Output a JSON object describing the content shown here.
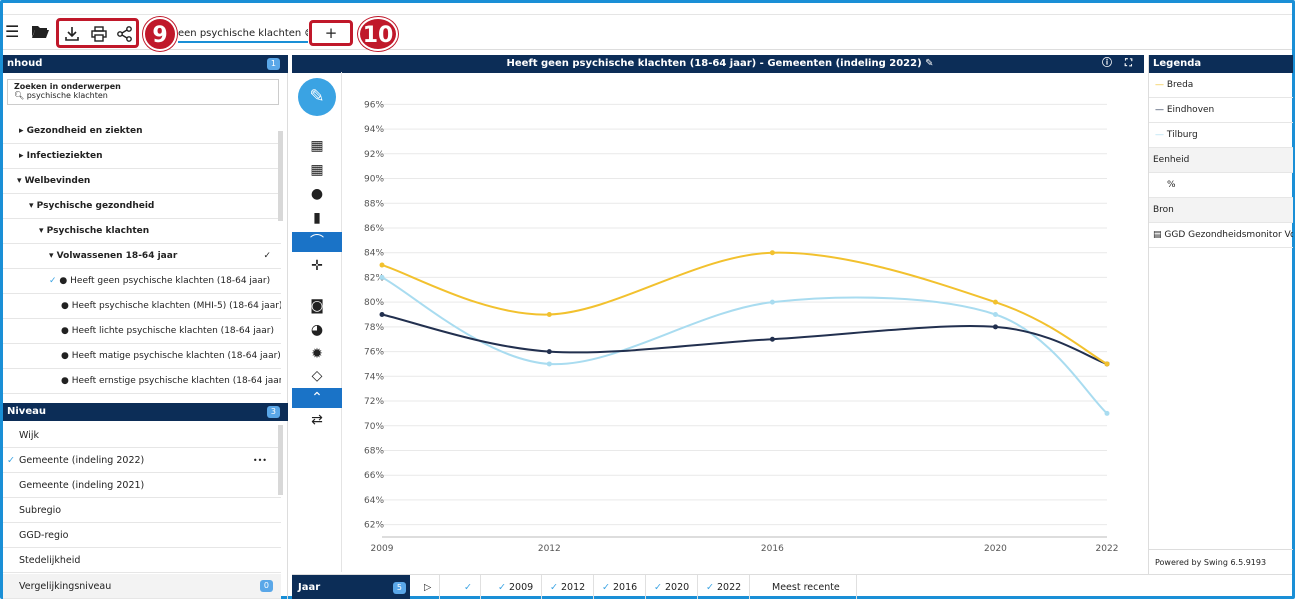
{
  "toolbar": {
    "menu_icon": "hamburger-icon",
    "folder_icon": "folder-open-icon",
    "download_icon": "download-icon",
    "print_icon": "print-icon",
    "share_icon": "share-icon",
    "badge_9": "9",
    "badge_10": "10",
    "add_tab_label": "+",
    "search_tab_text": "een psychische klachten",
    "close_tab_icon": "close-circle-icon"
  },
  "inhoud": {
    "title": "nhoud",
    "count": "1",
    "search_label": "Zoeken in onderwerpen",
    "search_value": "psychische klachten",
    "items": [
      {
        "label": "Gezondheid en ziekten",
        "prefix": "▸"
      },
      {
        "label": "Infectieziekten",
        "prefix": "▸"
      },
      {
        "label": "Welbevinden",
        "prefix": "▾"
      },
      {
        "label": "Psychische gezondheid",
        "prefix": "▾"
      },
      {
        "label": "Psychische klachten",
        "prefix": "▾"
      },
      {
        "label": "Volwassenen 18-64 jaar",
        "prefix": "▾"
      },
      {
        "label": "Heeft geen psychische klachten (18-64 jaar)",
        "prefix": "✓"
      },
      {
        "label": "Heeft psychische klachten (MHI-5) (18-64 jaar)",
        "prefix": ""
      },
      {
        "label": "Heeft lichte psychische klachten (18-64 jaar)",
        "prefix": ""
      },
      {
        "label": "Heeft matige psychische klachten (18-64 jaar)",
        "prefix": ""
      },
      {
        "label": "Heeft ernstige psychische klachten (18-64 jaar)",
        "prefix": ""
      }
    ]
  },
  "niveau": {
    "title": "Niveau",
    "count": "3",
    "items": [
      "Wijk",
      "Gemeente (indeling 2022)",
      "Gemeente (indeling 2021)",
      "Subregio",
      "GGD-regio",
      "Stedelijkheid"
    ],
    "more": "•••",
    "vergelijking_label": "Vergelijkingsniveau",
    "vergelijking_count": "0"
  },
  "chart_header": {
    "title": "Heeft geen psychische klachten (18-64 jaar) - Gemeenten (indeling 2022)",
    "edit_icon": "pencil-icon",
    "info_icon": "info-icon",
    "fullscreen_icon": "fullscreen-icon"
  },
  "chart_data": {
    "type": "line",
    "x": [
      2009,
      2012,
      2016,
      2020,
      2022
    ],
    "ylim": [
      61,
      97
    ],
    "yticks": [
      "96%",
      "94%",
      "92%",
      "90%",
      "88%",
      "86%",
      "84%",
      "82%",
      "80%",
      "78%",
      "76%",
      "74%",
      "72%",
      "70%",
      "68%",
      "66%",
      "64%",
      "62%"
    ],
    "series": [
      {
        "name": "Breda",
        "color": "#f2c12e",
        "values": [
          83,
          79,
          84,
          80,
          75
        ]
      },
      {
        "name": "Eindhoven",
        "color": "#22304f",
        "values": [
          79,
          76,
          77,
          78,
          75
        ]
      },
      {
        "name": "Tilburg",
        "color": "#a9dcf0",
        "values": [
          82,
          75,
          80,
          79,
          71
        ]
      }
    ]
  },
  "legend": {
    "title": "Legenda",
    "series": [
      "Breda",
      "Eindhoven",
      "Tilburg"
    ],
    "eenheid_label": "Eenheid",
    "eenheid_value": "%",
    "bron_label": "Bron",
    "bron_value": "GGD Gezondheidsmonitor Vo",
    "powered": "Powered by Swing 6.5.9193"
  },
  "bottom": {
    "jaar_label": "Jaar",
    "jaar_count": "5",
    "years": [
      "2009",
      "2012",
      "2016",
      "2020",
      "2022"
    ],
    "meest_recente": "Meest recente"
  }
}
